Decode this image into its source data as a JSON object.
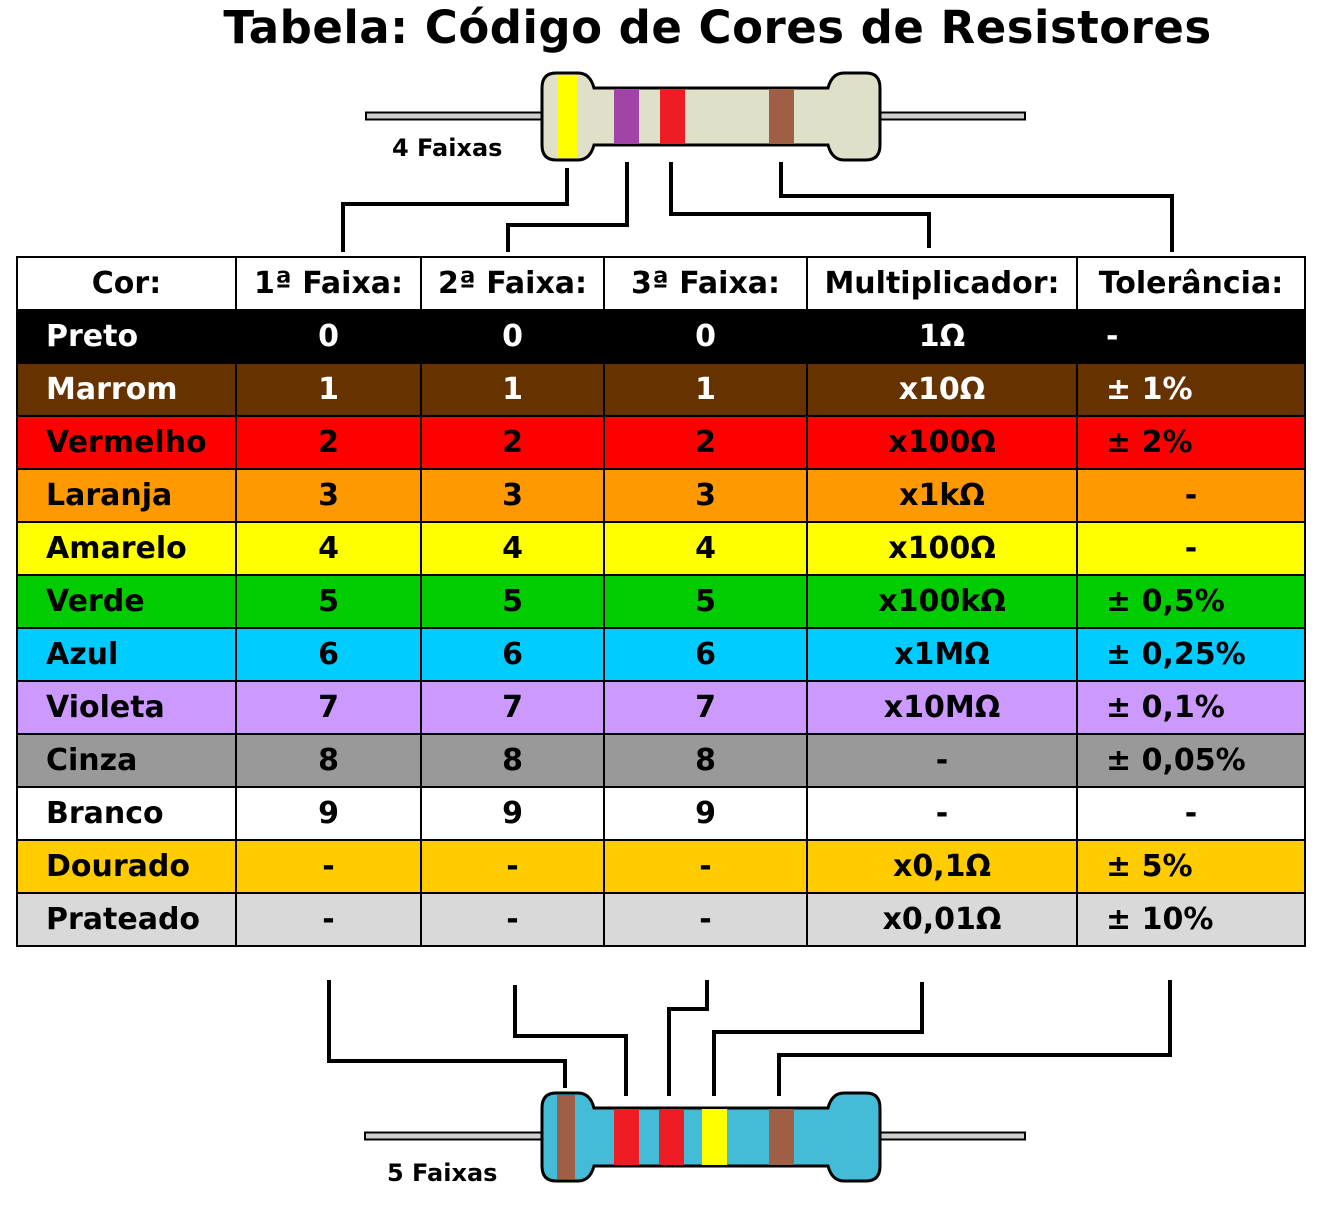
{
  "title": "Tabela: Código de Cores de Resistores",
  "resistor_top": {
    "label": "4 Faixas",
    "body_color": "#e0dfc9",
    "bands": [
      "#ffff00",
      "#a044a8",
      "#ee1c24",
      "#9e5f44"
    ]
  },
  "resistor_bottom": {
    "label": "5 Faixas",
    "body_color": "#44bcd8",
    "bands": [
      "#9e5f44",
      "#ee1c24",
      "#ee1c24",
      "#ffff00",
      "#9e5f44"
    ]
  },
  "table": {
    "headers": [
      "Cor:",
      "1ª Faixa:",
      "2ª Faixa:",
      "3ª Faixa:",
      "Multiplicador:",
      "Tolerância:"
    ],
    "rows": [
      {
        "name": "Preto",
        "bg": "#000000",
        "fg": "#ffffff",
        "d1": "0",
        "d2": "0",
        "d3": "0",
        "mult": "1Ω",
        "tol": "-"
      },
      {
        "name": "Marrom",
        "bg": "#663300",
        "fg": "#ffffff",
        "d1": "1",
        "d2": "1",
        "d3": "1",
        "mult": "x10Ω",
        "tol": "± 1%"
      },
      {
        "name": "Vermelho",
        "bg": "#ff0000",
        "fg": "#000000",
        "d1": "2",
        "d2": "2",
        "d3": "2",
        "mult": "x100Ω",
        "tol": "± 2%"
      },
      {
        "name": "Laranja",
        "bg": "#ff9900",
        "fg": "#000000",
        "d1": "3",
        "d2": "3",
        "d3": "3",
        "mult": "x1kΩ",
        "tol": "-"
      },
      {
        "name": "Amarelo",
        "bg": "#ffff00",
        "fg": "#000000",
        "d1": "4",
        "d2": "4",
        "d3": "4",
        "mult": "x100Ω",
        "tol": "-"
      },
      {
        "name": "Verde",
        "bg": "#00cc00",
        "fg": "#000000",
        "d1": "5",
        "d2": "5",
        "d3": "5",
        "mult": "x100kΩ",
        "tol": "± 0,5%"
      },
      {
        "name": "Azul",
        "bg": "#00ccff",
        "fg": "#000000",
        "d1": "6",
        "d2": "6",
        "d3": "6",
        "mult": "x1MΩ",
        "tol": "± 0,25%"
      },
      {
        "name": "Violeta",
        "bg": "#cc99ff",
        "fg": "#000000",
        "d1": "7",
        "d2": "7",
        "d3": "7",
        "mult": "x10MΩ",
        "tol": "± 0,1%"
      },
      {
        "name": "Cinza",
        "bg": "#999999",
        "fg": "#000000",
        "d1": "8",
        "d2": "8",
        "d3": "8",
        "mult": "-",
        "tol": "± 0,05%"
      },
      {
        "name": "Branco",
        "bg": "#ffffff",
        "fg": "#000000",
        "d1": "9",
        "d2": "9",
        "d3": "9",
        "mult": "-",
        "tol": "-"
      },
      {
        "name": "Dourado",
        "bg": "#ffcc00",
        "fg": "#000000",
        "d1": "-",
        "d2": "-",
        "d3": "-",
        "mult": "x0,1Ω",
        "tol": "± 5%"
      },
      {
        "name": "Prateado",
        "bg": "#d9d9d9",
        "fg": "#000000",
        "d1": "-",
        "d2": "-",
        "d3": "-",
        "mult": "x0,01Ω",
        "tol": "± 10%"
      }
    ]
  }
}
